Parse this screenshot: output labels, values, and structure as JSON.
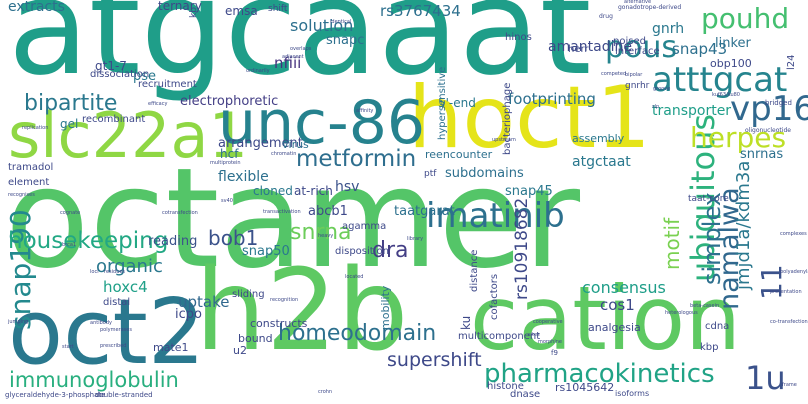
{
  "words": [
    {
      "text": "octamer",
      "color": "#54c568"
    },
    {
      "text": "atgcaaat",
      "color": "#1f9e89"
    },
    {
      "text": "h2b",
      "color": "#5ec962"
    },
    {
      "text": "cation",
      "color": "#5ec962"
    },
    {
      "text": "hoct1",
      "color": "#e5e419"
    },
    {
      "text": "oct2",
      "color": "#2a788e"
    },
    {
      "text": "slc22a1",
      "color": "#8fd744"
    },
    {
      "text": "unc-86",
      "color": "#26828e"
    },
    {
      "text": "pharmacokinetics",
      "color": "#20a386"
    },
    {
      "text": "1u",
      "color": "#3b528b"
    },
    {
      "text": "atttgcat",
      "color": "#25848e"
    },
    {
      "text": "pous",
      "color": "#25848e"
    },
    {
      "text": "pouhd",
      "color": "#44bf70"
    },
    {
      "text": "ubiquitous",
      "color": "#2db27d"
    },
    {
      "text": "imatinib",
      "color": "#2d708e"
    },
    {
      "text": "homeodomain",
      "color": "#2d708e"
    },
    {
      "text": "immunoglobulin",
      "color": "#29af7f"
    },
    {
      "text": "snap190",
      "color": "#23898e"
    },
    {
      "text": "metformin",
      "color": "#2e6e8e"
    },
    {
      "text": "bipartite",
      "color": "#2a788e"
    },
    {
      "text": "housekeeping",
      "color": "#22a884"
    },
    {
      "text": "vp16",
      "color": "#31688e"
    },
    {
      "text": "herpes",
      "color": "#bddf26"
    },
    {
      "text": "namalwa",
      "color": "#31688e"
    },
    {
      "text": "simplex",
      "color": "#2d708e"
    },
    {
      "text": "11",
      "color": "#3b528b"
    },
    {
      "text": "jmjd1a/kdm3a",
      "color": "#2a788e"
    },
    {
      "text": "dra",
      "color": "#433e85"
    },
    {
      "text": "snrna",
      "color": "#6ccd5a"
    },
    {
      "text": "bob1",
      "color": "#3b528b"
    },
    {
      "text": "supershift",
      "color": "#3e4989"
    },
    {
      "text": "motif",
      "color": "#7ad151"
    },
    {
      "text": "rs10918682",
      "color": "#3e4989"
    },
    {
      "text": "consensus",
      "color": "#1f9e89"
    },
    {
      "text": "cos1",
      "color": "#3e4989"
    },
    {
      "text": "uptake",
      "color": "#31688e"
    },
    {
      "text": "organic",
      "color": "#2a788e"
    },
    {
      "text": "hoxc4",
      "color": "#1fa088"
    },
    {
      "text": "footprinting",
      "color": "#2d708e"
    },
    {
      "text": "transporter",
      "color": "#1f9e89"
    },
    {
      "text": "snap43",
      "color": "#2d708e"
    },
    {
      "text": "linker",
      "color": "#2d708e"
    },
    {
      "text": "gnrh",
      "color": "#2a788e"
    },
    {
      "text": "solution",
      "color": "#2d708e"
    },
    {
      "text": "rs3767434",
      "color": "#2d708e"
    },
    {
      "text": "extracts",
      "color": "#2d708e"
    },
    {
      "text": "amantadine",
      "color": "#3e4989"
    },
    {
      "text": "nfiii",
      "color": "#46327e"
    },
    {
      "text": "snapc",
      "color": "#2d708e"
    },
    {
      "text": "electrophoretic",
      "color": "#433e85"
    },
    {
      "text": "hsv",
      "color": "#3b528b"
    },
    {
      "text": "flexible",
      "color": "#2d708e"
    },
    {
      "text": "subdomains",
      "color": "#2d708e"
    },
    {
      "text": "arrangement",
      "color": "#3e4989"
    },
    {
      "text": "atgctaat",
      "color": "#2a788e"
    },
    {
      "text": "snrnas",
      "color": "#2d708e"
    },
    {
      "text": "5'-end",
      "color": "#2a788e"
    },
    {
      "text": "abcb1",
      "color": "#3e4989"
    },
    {
      "text": "taatgarat",
      "color": "#2d708e"
    },
    {
      "text": "snap50",
      "color": "#2a788e"
    },
    {
      "text": "reading",
      "color": "#3b528b"
    },
    {
      "text": "snap45",
      "color": "#2a788e"
    },
    {
      "text": "cloned",
      "color": "#2a788e"
    },
    {
      "text": "at-rich",
      "color": "#3e4989"
    },
    {
      "text": "reencounter",
      "color": "#2d708e"
    },
    {
      "text": "assembly",
      "color": "#2a788e"
    },
    {
      "text": "emsa",
      "color": "#3e4989"
    },
    {
      "text": "ternary",
      "color": "#3e4989"
    },
    {
      "text": "pse",
      "color": "#2a788e"
    },
    {
      "text": "gt1-7",
      "color": "#3e4989"
    },
    {
      "text": "obp100",
      "color": "#3e4989"
    },
    {
      "text": "hypersensitive",
      "color": "#2d708e"
    },
    {
      "text": "bacteriophage",
      "color": "#3e4989"
    },
    {
      "text": "recruitment",
      "color": "#3e4989"
    },
    {
      "text": "dissociation",
      "color": "#3e4989"
    },
    {
      "text": "recombinant",
      "color": "#3e4989"
    },
    {
      "text": "gel",
      "color": "#2a788e"
    },
    {
      "text": "virus",
      "color": "#2d708e"
    },
    {
      "text": "hcf",
      "color": "#2d708e"
    },
    {
      "text": "icpo",
      "color": "#3e4989"
    },
    {
      "text": "tramadol",
      "color": "#3e4989"
    },
    {
      "text": "element",
      "color": "#3e4989"
    },
    {
      "text": "mobility",
      "color": "#2d708e"
    },
    {
      "text": "constructs",
      "color": "#3e4989"
    },
    {
      "text": "bound",
      "color": "#3e4989"
    },
    {
      "text": "u2",
      "color": "#3e4989"
    },
    {
      "text": "mate1",
      "color": "#3e4989"
    },
    {
      "text": "distal",
      "color": "#3e4989"
    },
    {
      "text": "sliding",
      "color": "#3e4989"
    },
    {
      "text": "agamma",
      "color": "#3e4989"
    },
    {
      "text": "disposition",
      "color": "#3e4989"
    },
    {
      "text": "distance",
      "color": "#3e4989"
    },
    {
      "text": "ku",
      "color": "#3e4989"
    },
    {
      "text": "cofactors",
      "color": "#3e4989"
    },
    {
      "text": "multicomponent",
      "color": "#3e4989"
    },
    {
      "text": "analgesia",
      "color": "#3e4989"
    },
    {
      "text": "cdna",
      "color": "#3e4989"
    },
    {
      "text": "kbp",
      "color": "#3e4989"
    },
    {
      "text": "herr",
      "color": "#3e4989"
    },
    {
      "text": "hinos",
      "color": "#3e4989"
    },
    {
      "text": "poised",
      "color": "#3e4989"
    },
    {
      "text": "interface",
      "color": "#3e4989"
    },
    {
      "text": "rs1045642",
      "color": "#3e4989"
    },
    {
      "text": "histone",
      "color": "#3e4989"
    },
    {
      "text": "dnase",
      "color": "#3e4989"
    },
    {
      "text": "isoforms",
      "color": "#3e4989"
    },
    {
      "text": "glyceraldehyde-3-phosphate",
      "color": "#3e4989"
    },
    {
      "text": "double-stranded",
      "color": "#3e4989"
    },
    {
      "text": "ptf",
      "color": "#3e4989"
    },
    {
      "text": "kb",
      "color": "#3e4989"
    },
    {
      "text": "shift",
      "color": "#3e4989"
    },
    {
      "text": "taat-core",
      "color": "#3e4989"
    },
    {
      "text": "l24",
      "color": "#3e4989"
    },
    {
      "text": "bridged",
      "color": "#3e4989"
    },
    {
      "text": "oligonucleotide",
      "color": "#3e4989"
    },
    {
      "text": "gonadotrope-derived",
      "color": "#3e4989"
    },
    {
      "text": "alternative",
      "color": "#3e4989"
    },
    {
      "text": "drug",
      "color": "#3e4989"
    },
    {
      "text": "identical",
      "color": "#3e4989"
    },
    {
      "text": "overlaps",
      "color": "#3e4989"
    },
    {
      "text": "adjacent",
      "color": "#3e4989"
    },
    {
      "text": "ordinarily",
      "color": "#3e4989"
    },
    {
      "text": "efficacy",
      "color": "#3e4989"
    },
    {
      "text": "gnrhr",
      "color": "#3e4989"
    },
    {
      "text": "upstream",
      "color": "#3e4989"
    },
    {
      "text": "competed",
      "color": "#3e4989"
    },
    {
      "text": "bipolar",
      "color": "#3e4989"
    },
    {
      "text": "slp",
      "color": "#3e4989"
    },
    {
      "text": "groove",
      "color": "#3e4989"
    },
    {
      "text": "replication",
      "color": "#3e4989"
    },
    {
      "text": "affinity",
      "color": "#3e4989"
    },
    {
      "text": "multiprotein",
      "color": "#3e4989"
    },
    {
      "text": "chromatin",
      "color": "#3e4989"
    },
    {
      "text": "recognises",
      "color": "#3e4989"
    },
    {
      "text": "cognate",
      "color": "#3e4989"
    },
    {
      "text": "cotransfection",
      "color": "#3e4989"
    },
    {
      "text": "transactivation",
      "color": "#3e4989"
    },
    {
      "text": "heavy",
      "color": "#3e4989"
    },
    {
      "text": "library",
      "color": "#3e4989"
    },
    {
      "text": "brca1",
      "color": "#3e4989"
    },
    {
      "text": "loci",
      "color": "#3e4989"
    },
    {
      "text": "residues",
      "color": "#3e4989"
    },
    {
      "text": "located",
      "color": "#3e4989"
    },
    {
      "text": "recognition",
      "color": "#3e4989"
    },
    {
      "text": "jumping",
      "color": "#3e4989"
    },
    {
      "text": "antibody",
      "color": "#3e4989"
    },
    {
      "text": "polymerases",
      "color": "#3e4989"
    },
    {
      "text": "prescribed",
      "color": "#3e4989"
    },
    {
      "text": "start",
      "color": "#3e4989"
    },
    {
      "text": "cooperative",
      "color": "#3e4989"
    },
    {
      "text": "sites",
      "color": "#3e4989"
    },
    {
      "text": "morphine",
      "color": "#3e4989"
    },
    {
      "text": "f9",
      "color": "#3e4989"
    },
    {
      "text": "co-transfection",
      "color": "#3e4989"
    },
    {
      "text": "frame",
      "color": "#3e4989"
    },
    {
      "text": "heterologous",
      "color": "#3e4989"
    },
    {
      "text": "presentation",
      "color": "#3e4989"
    },
    {
      "text": "beta-casein",
      "color": "#3e4989"
    },
    {
      "text": "complexes",
      "color": "#3e4989"
    },
    {
      "text": "polyadenylation",
      "color": "#3e4989"
    },
    {
      "text": "kuf63/ku80",
      "color": "#3e4989"
    },
    {
      "text": "sv40",
      "color": "#3e4989"
    },
    {
      "text": "crohn",
      "color": "#3e4989"
    }
  ]
}
